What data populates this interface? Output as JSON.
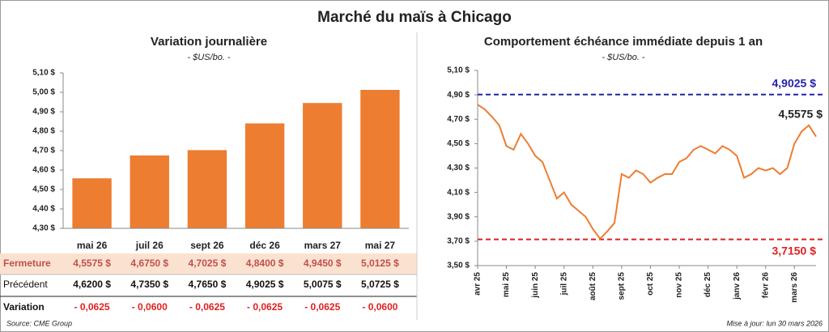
{
  "title": "Marché du maïs à Chicago",
  "chart_data": [
    {
      "type": "bar",
      "title": "Variation journalière",
      "subtitle": "- $US/bo. -",
      "categories": [
        "mai 26",
        "juil 26",
        "sept 26",
        "déc 26",
        "mars 27",
        "mai 27"
      ],
      "values": [
        4.5575,
        4.675,
        4.7025,
        4.84,
        4.945,
        5.0125
      ],
      "color": "#ed7d31",
      "ylim": [
        4.3,
        5.1
      ],
      "yticks": [
        {
          "value": 4.3,
          "label": "4,30 $"
        },
        {
          "value": 4.4,
          "label": "4,40 $"
        },
        {
          "value": 4.5,
          "label": "4,50 $"
        },
        {
          "value": 4.6,
          "label": "4,60 $"
        },
        {
          "value": 4.7,
          "label": "4,70 $"
        },
        {
          "value": 4.8,
          "label": "4,80 $"
        },
        {
          "value": 4.9,
          "label": "4,90 $"
        },
        {
          "value": 5.0,
          "label": "5,00 $"
        },
        {
          "value": 5.1,
          "label": "5,10 $"
        }
      ]
    },
    {
      "type": "line",
      "title": "Comportement  échéance immédiate depuis 1 an",
      "subtitle": "- $US/bo. -",
      "categories": [
        "avr 25",
        null,
        null,
        null,
        "mai 25",
        null,
        null,
        null,
        "juin 25",
        null,
        null,
        null,
        "juil 25",
        null,
        null,
        null,
        "août 25",
        null,
        null,
        null,
        "sept 25",
        null,
        null,
        null,
        "oct 25",
        null,
        null,
        null,
        "nov 25",
        null,
        null,
        null,
        "déc 25",
        null,
        null,
        null,
        "janv 26",
        null,
        null,
        null,
        "févr 26",
        null,
        null,
        null,
        "mars 26",
        null,
        null,
        null
      ],
      "series": [
        {
          "color": "#ed7d31",
          "values": [
            4.82,
            4.78,
            4.72,
            4.65,
            4.48,
            4.45,
            4.58,
            4.5,
            4.4,
            4.35,
            4.2,
            4.05,
            4.1,
            4.0,
            3.95,
            3.9,
            3.8,
            3.72,
            3.78,
            3.85,
            4.25,
            4.22,
            4.28,
            4.25,
            4.18,
            4.22,
            4.25,
            4.25,
            4.35,
            4.38,
            4.45,
            4.48,
            4.45,
            4.42,
            4.48,
            4.45,
            4.4,
            4.22,
            4.25,
            4.3,
            4.28,
            4.3,
            4.25,
            4.3,
            4.5,
            4.6,
            4.65,
            4.5575
          ]
        }
      ],
      "ylim": [
        3.5,
        5.1
      ],
      "yticks": [
        {
          "value": 3.5,
          "label": "3,50 $"
        },
        {
          "value": 3.7,
          "label": "3,70 $"
        },
        {
          "value": 3.9,
          "label": "3,90 $"
        },
        {
          "value": 4.1,
          "label": "4,10 $"
        },
        {
          "value": 4.3,
          "label": "4,30 $"
        },
        {
          "value": 4.5,
          "label": "4,50 $"
        },
        {
          "value": 4.7,
          "label": "4,70 $"
        },
        {
          "value": 4.9,
          "label": "4,90 $"
        },
        {
          "value": 5.1,
          "label": "5,10 $"
        }
      ],
      "hlines": [
        {
          "value": 4.9025,
          "label": "4,9025 $",
          "color": "#2222aa"
        },
        {
          "value": 3.715,
          "label": "3,7150 $",
          "color": "#e02020"
        }
      ],
      "annotation": {
        "value": 4.5575,
        "label": "4,5575 $"
      }
    }
  ],
  "table": {
    "rows": [
      [
        "Fermeture",
        "4,5575  $",
        "4,6750  $",
        "4,7025  $",
        "4,8400  $",
        "4,9450  $",
        "5,0125  $"
      ],
      [
        "Précédent",
        "4,6200  $",
        "4,7350  $",
        "4,7650  $",
        "4,9025  $",
        "5,0075  $",
        "5,0725  $"
      ],
      [
        "Variation",
        "- 0,0625",
        "- 0,0600",
        "- 0,0625",
        "- 0,0625",
        "- 0,0625",
        "- 0,0600"
      ]
    ]
  },
  "footer": {
    "source": "Source: CME Group",
    "updated": "Mise à jour: lun 30 mars 2026"
  }
}
